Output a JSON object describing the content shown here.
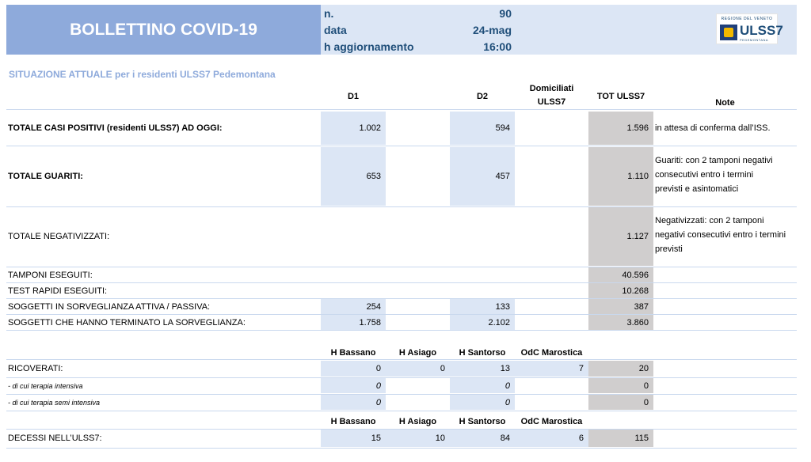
{
  "header": {
    "title": "BOLLETTINO COVID-19",
    "info": [
      {
        "label": "n.",
        "value": "90"
      },
      {
        "label": "data",
        "value": "24-mag"
      },
      {
        "label": "h aggiornamento",
        "value": "16:00"
      }
    ],
    "logo": {
      "top": "REGIONE DEL VENETO",
      "name": "ULSS7",
      "sub": "PEDEMONTANA"
    }
  },
  "section_title": "SITUAZIONE ATTUALE per i residenti ULSS7 Pedemontana",
  "main_headers": {
    "d1": "D1",
    "d2": "D2",
    "dom_l1": "Domiciliati",
    "dom_l2": "ULSS7",
    "tot": "TOT ULSS7",
    "note": "Note"
  },
  "main_rows": {
    "positivi": {
      "label": "TOTALE CASI POSITIVI (residenti ULSS7) AD OGGI:",
      "d1": "1.002",
      "d2": "594",
      "tot": "1.596",
      "note": "in attesa di conferma dall’ISS."
    },
    "guariti": {
      "label": "TOTALE GUARITI:",
      "d1": "653",
      "d2": "457",
      "tot": "1.110",
      "note": "Guariti: con 2 tamponi negativi consecutivi entro i termini previsti e asintomatici"
    },
    "negativizzati": {
      "label": "TOTALE NEGATIVIZZATI:",
      "tot": "1.127",
      "note": "Negativizzati: con 2 tamponi negativi consecutivi entro i termini previsti"
    },
    "tamponi": {
      "label": "TAMPONI ESEGUITI:",
      "tot": "40.596"
    },
    "test_rapidi": {
      "label": "TEST RAPIDI ESEGUITI:",
      "tot": "10.268"
    },
    "sorveglianza": {
      "label": "SOGGETTI IN SORVEGLIANZA ATTIVA / PASSIVA:",
      "d1": "254",
      "d2": "133",
      "tot": "387"
    },
    "terminato": {
      "label": "SOGGETTI CHE HANNO TERMINATO LA SORVEGLIANZA:",
      "d1": "1.758",
      "d2": "2.102",
      "tot": "3.860"
    }
  },
  "hospital_headers": {
    "bassano": "H Bassano",
    "asiago": "H Asiago",
    "santorso": "H Santorso",
    "marostica": "OdC Marostica"
  },
  "ricoverati": {
    "label": "RICOVERATI:",
    "bassano": "0",
    "asiago": "0",
    "santorso": "13",
    "marostica": "7",
    "tot": "20"
  },
  "intensiva": {
    "label": "- di cui terapia intensiva",
    "bassano": "0",
    "santorso": "0",
    "tot": "0"
  },
  "semi_intensiva": {
    "label": "- di cui terapia semi intensiva",
    "bassano": "0",
    "santorso": "0",
    "tot": "0"
  },
  "decessi": {
    "label": "DECESSI NELL’ULSS7:",
    "bassano": "15",
    "asiago": "10",
    "santorso": "84",
    "marostica": "6",
    "tot": "115"
  },
  "colors": {
    "title_bg": "#8eaadb",
    "info_bg": "#dce6f5",
    "cell_blue": "#dce6f5",
    "cell_gray": "#d0cece",
    "text_blue": "#1f4e79"
  }
}
